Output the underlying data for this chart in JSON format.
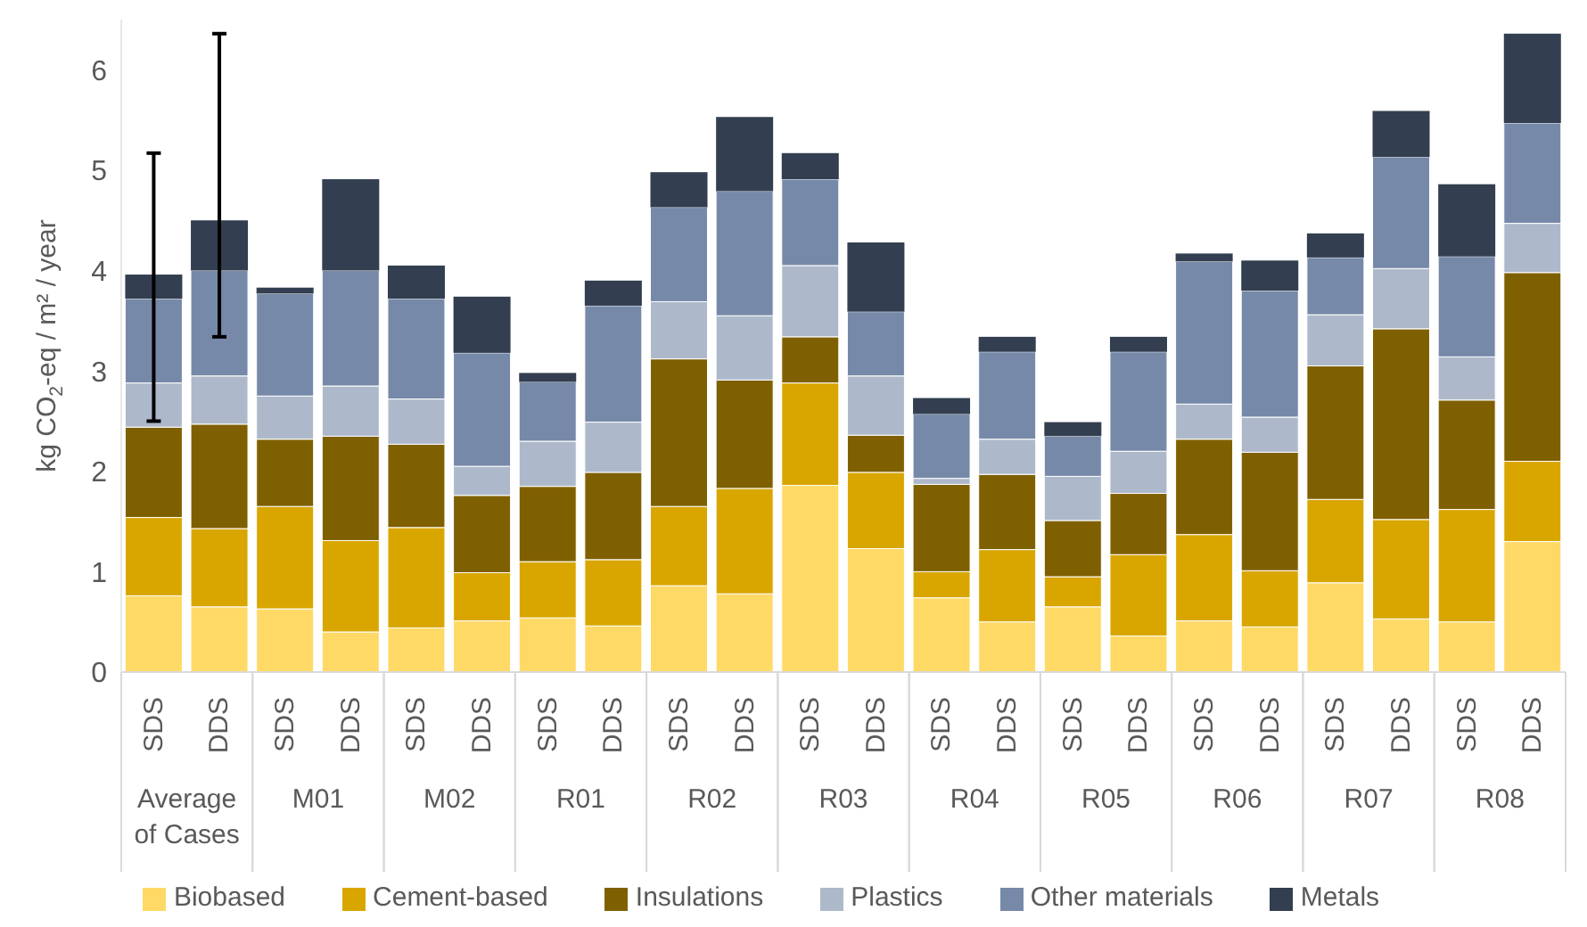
{
  "chart_data": {
    "type": "bar",
    "stacked": true,
    "ylabel": "kg CO$_{2}$-eq / m² / year",
    "categories": [
      "SDS",
      "DDS",
      "SDS",
      "DDS",
      "SDS",
      "DDS",
      "SDS",
      "DDS",
      "SDS",
      "DDS",
      "SDS",
      "DDS",
      "SDS",
      "DDS",
      "SDS",
      "DDS",
      "SDS",
      "DDS",
      "SDS",
      "DDS",
      "SDS",
      "DDS"
    ],
    "annotations": [
      "Average of Cases",
      "M01",
      "M02",
      "R01",
      "R02",
      "R03",
      "R04",
      "R05",
      "R06",
      "R07",
      "R08"
    ],
    "series": [
      {
        "name": "Biobased",
        "color": "#ffd966",
        "values": [
          0.76,
          0.65,
          0.63,
          0.4,
          0.44,
          0.51,
          0.54,
          0.46,
          0.86,
          0.78,
          1.86,
          1.23,
          0.74,
          0.5,
          0.65,
          0.36,
          0.51,
          0.45,
          0.89,
          0.53,
          0.5,
          1.3
        ]
      },
      {
        "name": "Cement-based",
        "color": "#d9a600",
        "values": [
          0.78,
          0.78,
          1.02,
          0.91,
          1.0,
          0.48,
          0.56,
          0.66,
          0.79,
          1.05,
          1.02,
          0.76,
          0.26,
          0.72,
          0.3,
          0.81,
          0.86,
          0.56,
          0.83,
          0.99,
          1.12,
          0.8
        ]
      },
      {
        "name": "Insulations",
        "color": "#7f6000",
        "values": [
          0.9,
          1.04,
          0.67,
          1.04,
          0.83,
          0.77,
          0.75,
          0.87,
          1.47,
          1.08,
          0.46,
          0.37,
          0.87,
          0.75,
          0.56,
          0.61,
          0.95,
          1.18,
          1.33,
          1.9,
          1.09,
          1.88
        ]
      },
      {
        "name": "Plastics",
        "color": "#adb9ca",
        "values": [
          0.44,
          0.48,
          0.43,
          0.5,
          0.45,
          0.29,
          0.45,
          0.5,
          0.57,
          0.64,
          0.71,
          0.59,
          0.06,
          0.35,
          0.44,
          0.42,
          0.35,
          0.35,
          0.51,
          0.6,
          0.43,
          0.49
        ]
      },
      {
        "name": "Other materials",
        "color": "#7689a8",
        "values": [
          0.84,
          1.05,
          1.02,
          1.15,
          1.0,
          1.13,
          0.59,
          1.16,
          0.94,
          1.24,
          0.86,
          0.64,
          0.64,
          0.87,
          0.4,
          0.99,
          1.42,
          1.26,
          0.57,
          1.11,
          1.0,
          1.0
        ]
      },
      {
        "name": "Metals",
        "color": "#333f50",
        "values": [
          0.24,
          0.5,
          0.06,
          0.91,
          0.33,
          0.56,
          0.09,
          0.25,
          0.35,
          0.74,
          0.26,
          0.69,
          0.16,
          0.15,
          0.14,
          0.15,
          0.08,
          0.3,
          0.24,
          0.46,
          0.72,
          0.89
        ],
        "errors": [
          [
            2.5,
            5.17
          ],
          [
            3.34,
            6.36
          ],
          null,
          null,
          null,
          null,
          null,
          null,
          null,
          null,
          null,
          null,
          null,
          null,
          null,
          null,
          null,
          null,
          null,
          null,
          null,
          null
        ]
      }
    ],
    "ylim": [
      0,
      6.5
    ],
    "yticks": [
      0,
      1,
      2,
      3,
      4,
      5,
      6
    ],
    "grid": false,
    "legend": "bottom"
  }
}
